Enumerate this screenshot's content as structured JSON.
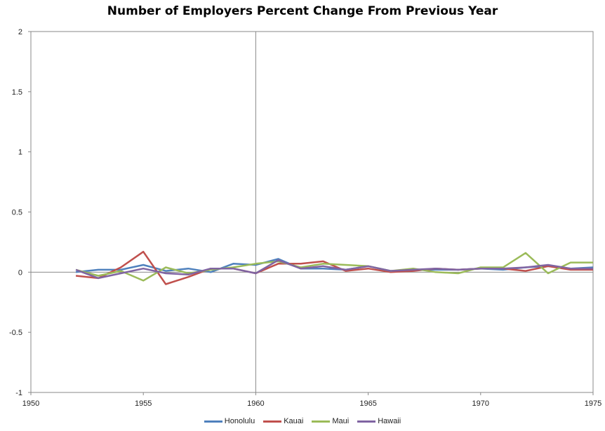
{
  "chart_data": {
    "type": "line",
    "title": "Number of Employers Percent Change From Previous Year",
    "xlabel": "",
    "ylabel": "",
    "xlim": [
      1950,
      1975
    ],
    "ylim": [
      -1,
      2
    ],
    "x_ticks": [
      "1950",
      "1955",
      "1960",
      "1965",
      "1970",
      "1975"
    ],
    "y_ticks": [
      "2",
      "1.5",
      "1",
      "0.5",
      "0",
      "-0.5",
      "-1"
    ],
    "vertical_reference_line_x": 1960,
    "grid": false,
    "legend_position": "bottom",
    "x": [
      1952,
      1953,
      1954,
      1955,
      1956,
      1957,
      1958,
      1959,
      1960,
      1961,
      1962,
      1963,
      1964,
      1965,
      1966,
      1967,
      1968,
      1969,
      1970,
      1971,
      1972,
      1973,
      1974,
      1975
    ],
    "series": [
      {
        "name": "Honolulu",
        "color": "#4f81bd",
        "values": [
          0.0,
          0.02,
          0.02,
          0.06,
          0.01,
          0.03,
          0.0,
          0.07,
          0.06,
          0.11,
          0.03,
          0.03,
          0.02,
          0.05,
          0.01,
          0.02,
          0.02,
          0.02,
          0.03,
          0.02,
          0.04,
          0.05,
          0.03,
          0.04
        ]
      },
      {
        "name": "Kauai",
        "color": "#c0504d",
        "values": [
          -0.03,
          -0.05,
          0.04,
          0.17,
          -0.1,
          -0.04,
          0.03,
          0.03,
          -0.01,
          0.07,
          0.07,
          0.09,
          0.01,
          0.03,
          0.0,
          0.01,
          0.03,
          0.02,
          0.03,
          0.03,
          0.01,
          0.05,
          0.02,
          0.02
        ]
      },
      {
        "name": "Maui",
        "color": "#9bbb59",
        "values": [
          0.02,
          -0.03,
          0.01,
          -0.07,
          0.04,
          -0.01,
          0.02,
          0.04,
          0.07,
          0.09,
          0.04,
          0.07,
          0.06,
          0.05,
          0.01,
          0.03,
          0.0,
          -0.01,
          0.04,
          0.04,
          0.16,
          -0.01,
          0.08,
          0.08
        ]
      },
      {
        "name": "Hawaii",
        "color": "#8064a2",
        "values": [
          0.02,
          -0.05,
          -0.01,
          0.03,
          -0.01,
          -0.02,
          0.03,
          0.03,
          -0.01,
          0.1,
          0.03,
          0.05,
          0.02,
          0.05,
          0.01,
          0.02,
          0.03,
          0.02,
          0.03,
          0.03,
          0.04,
          0.06,
          0.03,
          0.03
        ]
      }
    ]
  }
}
